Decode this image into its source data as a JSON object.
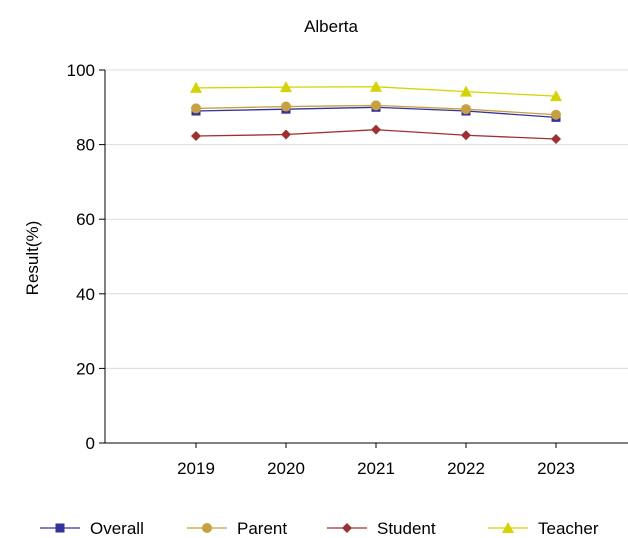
{
  "chart_data": {
    "type": "line",
    "title": "Alberta",
    "xlabel": "",
    "ylabel": "Result(%)",
    "categories": [
      "2019",
      "2020",
      "2021",
      "2022",
      "2023"
    ],
    "ylim": [
      0,
      100
    ],
    "yticks": [
      0,
      20,
      40,
      60,
      80,
      100
    ],
    "grid": true,
    "legend_position": "bottom",
    "series": [
      {
        "name": "Overall",
        "color": "#3333a0",
        "marker": "square",
        "values": [
          89.0,
          89.5,
          90.0,
          89.0,
          87.3
        ]
      },
      {
        "name": "Parent",
        "color": "#c8a040",
        "marker": "circle",
        "values": [
          89.7,
          90.2,
          90.5,
          89.5,
          88.0
        ]
      },
      {
        "name": "Student",
        "color": "#a03030",
        "marker": "diamond",
        "values": [
          82.3,
          82.7,
          84.0,
          82.5,
          81.5
        ]
      },
      {
        "name": "Teacher",
        "color": "#d4d400",
        "marker": "triangle",
        "values": [
          95.2,
          95.4,
          95.5,
          94.2,
          93.0
        ]
      }
    ]
  }
}
